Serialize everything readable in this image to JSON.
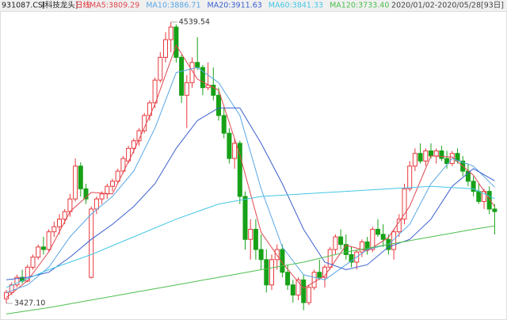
{
  "chart_data": {
    "type": "candlestick",
    "code": "931087.CSI",
    "name": "[科技龙头]",
    "period": "日线",
    "date_range": "2020/01/02-2020/05/28[93日]",
    "up_color": "#e8383d",
    "down_color": "#17a117",
    "ylim": [
      3380,
      4583
    ],
    "open": [
      3445,
      3470,
      3500,
      3530,
      3515,
      3570,
      3610,
      3650,
      3640,
      3710,
      3730,
      3760,
      3790,
      3840,
      3970,
      3880,
      3530,
      3800,
      3840,
      3860,
      3890,
      3910,
      3950,
      3990,
      4040,
      4070,
      4110,
      4170,
      4220,
      4310,
      4400,
      4470,
      4520,
      4400,
      4250,
      4300,
      4380,
      4360,
      4280,
      4290,
      4250,
      4170,
      4100,
      4000,
      4060,
      3850,
      3680,
      3720,
      3640,
      3600,
      3500,
      3600,
      3640,
      3550,
      3500,
      3460,
      3520,
      3430,
      3490,
      3550,
      3530,
      3570,
      3640,
      3690,
      3660,
      3620,
      3590,
      3630,
      3670,
      3640,
      3720,
      3700,
      3680,
      3640,
      3710,
      3760,
      3880,
      3970,
      4020,
      3990,
      4030,
      4010,
      4030,
      4000,
      3980,
      4020,
      3990,
      3950,
      3910,
      3870,
      3830,
      3870,
      3800
    ],
    "high": [
      3480,
      3510,
      3540,
      3560,
      3580,
      3620,
      3660,
      3690,
      3720,
      3750,
      3780,
      3800,
      3860,
      4000,
      3985,
      3900,
      3810,
      3850,
      3870,
      3900,
      3920,
      3960,
      4010,
      4050,
      4080,
      4120,
      4180,
      4230,
      4320,
      4420,
      4500,
      4539.54,
      4530,
      4410,
      4330,
      4400,
      4480,
      4370,
      4380,
      4360,
      4280,
      4200,
      4120,
      4080,
      4070,
      3870,
      3760,
      3760,
      3700,
      3640,
      3620,
      3660,
      3660,
      3580,
      3520,
      3530,
      3540,
      3500,
      3560,
      3600,
      3580,
      3650,
      3700,
      3720,
      3700,
      3650,
      3640,
      3680,
      3690,
      3730,
      3760,
      3740,
      3700,
      3720,
      3780,
      3900,
      3990,
      4040,
      4060,
      4040,
      4060,
      4040,
      4050,
      4030,
      4030,
      4040,
      4010,
      3980,
      3930,
      3900,
      3880,
      3890,
      3820
    ],
    "low": [
      3427.1,
      3460,
      3490,
      3505,
      3510,
      3560,
      3600,
      3620,
      3630,
      3690,
      3700,
      3740,
      3770,
      3830,
      3850,
      3820,
      3525,
      3780,
      3820,
      3840,
      3870,
      3900,
      3940,
      3980,
      4020,
      4050,
      4100,
      4150,
      4200,
      4300,
      4380,
      4420,
      4380,
      4220,
      4120,
      4280,
      4350,
      4250,
      4270,
      4230,
      4150,
      4080,
      3980,
      3960,
      3820,
      3640,
      3600,
      3600,
      3560,
      3470,
      3480,
      3560,
      3530,
      3480,
      3430,
      3440,
      3400,
      3420,
      3480,
      3520,
      3490,
      3560,
      3620,
      3640,
      3600,
      3570,
      3560,
      3610,
      3620,
      3630,
      3690,
      3650,
      3620,
      3600,
      3690,
      3740,
      3870,
      3950,
      3980,
      3970,
      4000,
      3980,
      3990,
      3960,
      3970,
      3980,
      3930,
      3890,
      3850,
      3820,
      3800,
      3780,
      3700
    ],
    "close": [
      3470,
      3500,
      3530,
      3515,
      3570,
      3610,
      3650,
      3640,
      3710,
      3730,
      3760,
      3790,
      3840,
      3970,
      3880,
      3840,
      3800,
      3840,
      3860,
      3890,
      3910,
      3950,
      4000,
      4040,
      4070,
      4110,
      4170,
      4220,
      4310,
      4400,
      4470,
      4520,
      4400,
      4250,
      4300,
      4380,
      4360,
      4280,
      4290,
      4250,
      4170,
      4100,
      4000,
      4060,
      3850,
      3680,
      3720,
      3640,
      3600,
      3500,
      3600,
      3640,
      3550,
      3500,
      3460,
      3520,
      3430,
      3490,
      3550,
      3530,
      3570,
      3640,
      3690,
      3660,
      3620,
      3590,
      3630,
      3670,
      3640,
      3720,
      3700,
      3680,
      3640,
      3710,
      3760,
      3880,
      3970,
      4020,
      3990,
      4030,
      4010,
      4030,
      4000,
      3980,
      4020,
      3990,
      3950,
      3910,
      3870,
      3830,
      3870,
      3800,
      3790
    ],
    "series": [
      {
        "name": "MA5:3809.29",
        "color": "#e04850",
        "x": [
          0,
          4,
          8,
          12,
          16,
          20,
          24,
          28,
          32,
          36,
          40,
          44,
          48,
          52,
          56,
          60,
          64,
          68,
          72,
          76,
          80,
          84,
          88,
          92
        ],
        "values": [
          3450,
          3517,
          3631,
          3790,
          3866,
          3860,
          4030,
          4214,
          4448,
          4314,
          4270,
          4014,
          3708,
          3587,
          3487,
          3536,
          3657,
          3634,
          3688,
          3811,
          4010,
          4006,
          3934,
          3809.29
        ]
      },
      {
        "name": "MA10:3886.71",
        "color": "#5aa6e6",
        "x": [
          0,
          4,
          8,
          12,
          16,
          20,
          24,
          28,
          32,
          36,
          40,
          44,
          48,
          52,
          56,
          60,
          64,
          68,
          72,
          76,
          80,
          84,
          88,
          92
        ],
        "values": [
          3470,
          3500,
          3570,
          3690,
          3780,
          3850,
          3950,
          4120,
          4340,
          4360,
          4300,
          4170,
          3880,
          3650,
          3540,
          3520,
          3580,
          3640,
          3660,
          3740,
          3900,
          4000,
          3970,
          3886.71
        ]
      },
      {
        "name": "MA20:3911.63",
        "color": "#3a5fd0",
        "x": [
          0,
          4,
          8,
          12,
          16,
          20,
          24,
          28,
          32,
          36,
          40,
          44,
          48,
          52,
          56,
          60,
          64,
          68,
          72,
          76,
          80,
          84,
          88,
          92
        ],
        "values": [
          3520,
          3530,
          3550,
          3610,
          3680,
          3740,
          3810,
          3900,
          4040,
          4150,
          4200,
          4200,
          4060,
          3900,
          3720,
          3590,
          3560,
          3580,
          3650,
          3680,
          3760,
          3890,
          3960,
          3911.63
        ]
      },
      {
        "name": "MA60:3841.33",
        "color": "#44c6e6",
        "x": [
          0,
          8,
          16,
          24,
          32,
          40,
          48,
          56,
          64,
          72,
          80,
          88,
          92
        ],
        "values": [
          3490,
          3560,
          3620,
          3690,
          3760,
          3820,
          3850,
          3860,
          3870,
          3880,
          3890,
          3880,
          3841.33
        ]
      },
      {
        "name": "MA120:3733.40",
        "color": "#4cbf4c",
        "x": [
          0,
          8,
          16,
          24,
          32,
          40,
          48,
          56,
          64,
          72,
          80,
          88,
          92
        ],
        "values": [
          3385,
          3410,
          3440,
          3470,
          3500,
          3530,
          3560,
          3590,
          3630,
          3660,
          3690,
          3720,
          3733.4
        ]
      }
    ],
    "annotations": [
      {
        "label": "4539.54",
        "value": 4539.54,
        "x": 31
      },
      {
        "label": "3427.10",
        "value": 3427.1,
        "x": 0
      }
    ]
  }
}
